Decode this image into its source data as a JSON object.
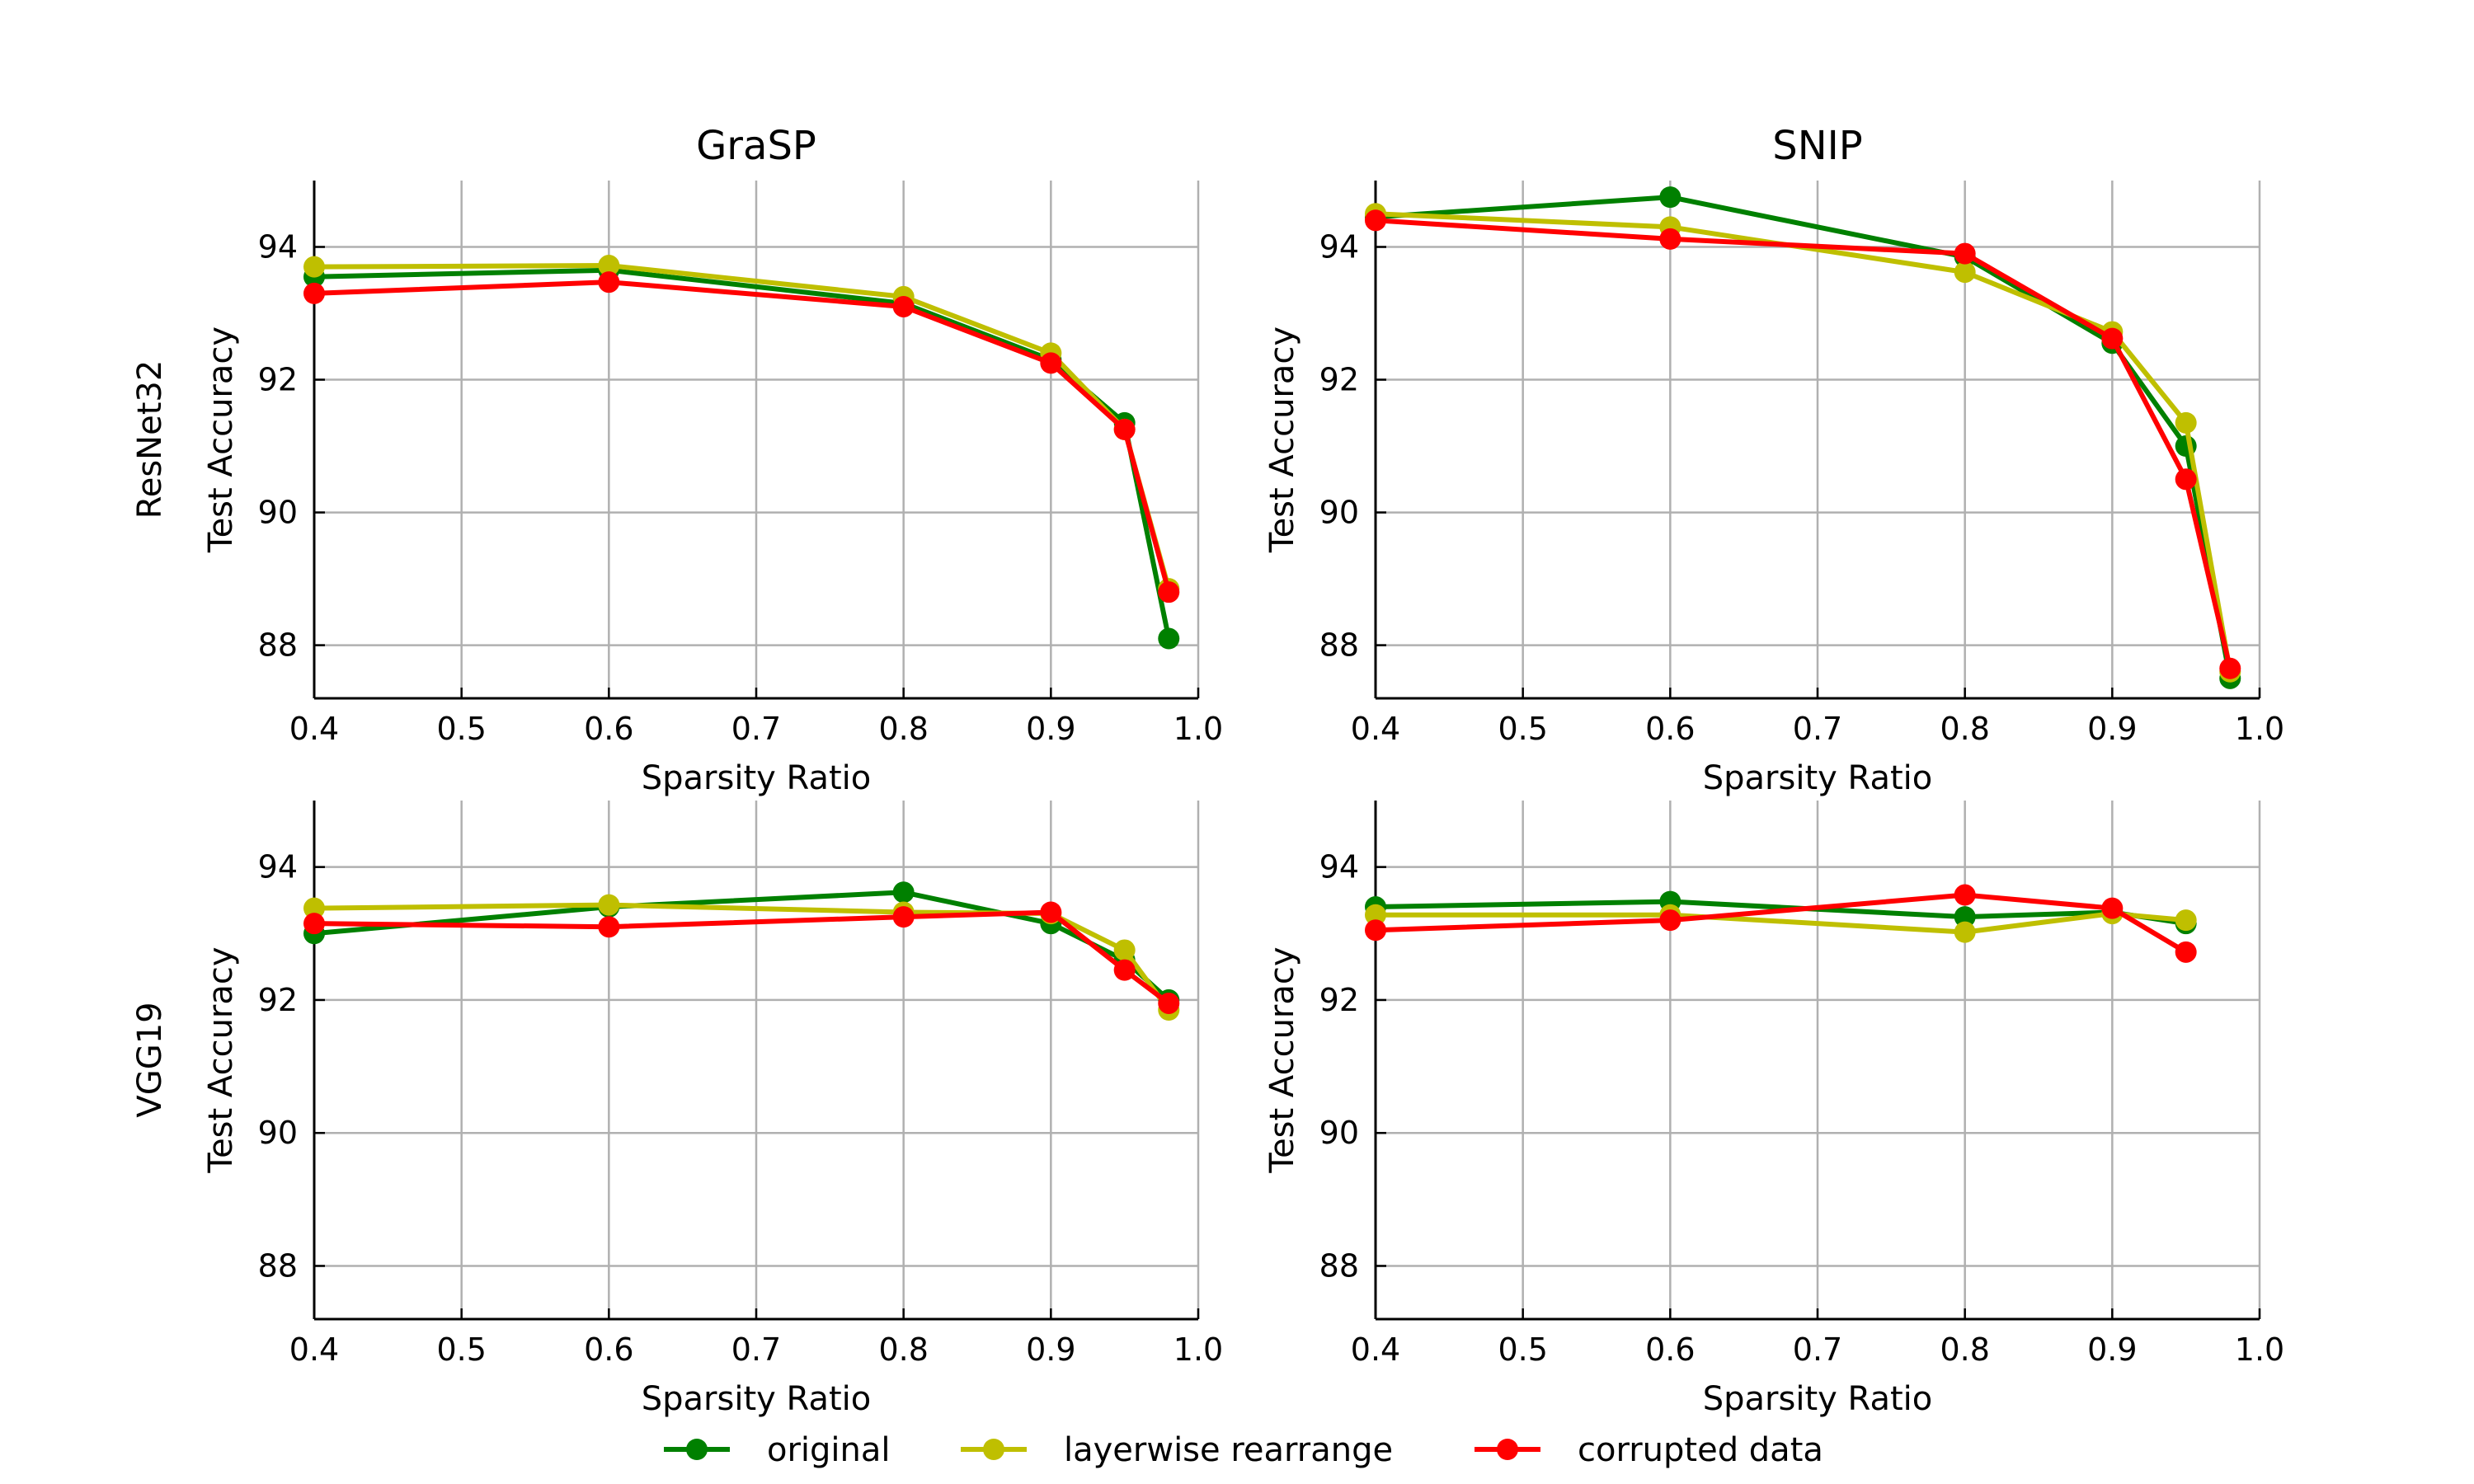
{
  "figure": {
    "legend": {
      "position": "bottom-center",
      "entries": [
        {
          "label": "original",
          "color": "#008000"
        },
        {
          "label": "layerwise rearrange",
          "color": "#bfbf00"
        },
        {
          "label": "corrupted data",
          "color": "#ff0000"
        }
      ]
    }
  },
  "chart_data": [
    {
      "type": "line",
      "title": "GraSP",
      "row_label": "ResNet32",
      "xlabel": "Sparsity Ratio",
      "ylabel": "Test Accuracy",
      "xlim": [
        0.4,
        1.0
      ],
      "ylim": [
        87.2,
        95.0
      ],
      "xticks": [
        "0.4",
        "0.5",
        "0.6",
        "0.7",
        "0.8",
        "0.9",
        "1.0"
      ],
      "yticks": [
        "88",
        "90",
        "92",
        "94"
      ],
      "grid": true,
      "series": [
        {
          "name": "original",
          "color": "#008000",
          "x": [
            0.4,
            0.6,
            0.8,
            0.9,
            0.95,
            0.98
          ],
          "y": [
            93.55,
            93.65,
            93.15,
            92.3,
            91.35,
            88.1
          ]
        },
        {
          "name": "layerwise rearrange",
          "color": "#bfbf00",
          "x": [
            0.4,
            0.6,
            0.8,
            0.9,
            0.95,
            0.98
          ],
          "y": [
            93.7,
            93.72,
            93.25,
            92.4,
            91.25,
            88.85
          ]
        },
        {
          "name": "corrupted data",
          "color": "#ff0000",
          "x": [
            0.4,
            0.6,
            0.8,
            0.9,
            0.95,
            0.98
          ],
          "y": [
            93.3,
            93.47,
            93.1,
            92.25,
            91.25,
            88.8
          ]
        }
      ]
    },
    {
      "type": "line",
      "title": "SNIP",
      "row_label": "",
      "xlabel": "Sparsity Ratio",
      "ylabel": "Test Accuracy",
      "xlim": [
        0.4,
        1.0
      ],
      "ylim": [
        87.2,
        95.0
      ],
      "xticks": [
        "0.4",
        "0.5",
        "0.6",
        "0.7",
        "0.8",
        "0.9",
        "1.0"
      ],
      "yticks": [
        "88",
        "90",
        "92",
        "94"
      ],
      "grid": true,
      "series": [
        {
          "name": "original",
          "color": "#008000",
          "x": [
            0.4,
            0.6,
            0.8,
            0.9,
            0.95,
            0.98
          ],
          "y": [
            94.45,
            94.75,
            93.85,
            92.55,
            91.0,
            87.5
          ]
        },
        {
          "name": "layerwise rearrange",
          "color": "#bfbf00",
          "x": [
            0.4,
            0.6,
            0.8,
            0.9,
            0.95,
            0.98
          ],
          "y": [
            94.5,
            94.3,
            93.62,
            92.72,
            91.35,
            87.6
          ]
        },
        {
          "name": "corrupted data",
          "color": "#ff0000",
          "x": [
            0.4,
            0.6,
            0.8,
            0.9,
            0.95,
            0.98
          ],
          "y": [
            94.4,
            94.12,
            93.9,
            92.62,
            90.5,
            87.65
          ]
        }
      ]
    },
    {
      "type": "line",
      "title": "",
      "row_label": "VGG19",
      "xlabel": "Sparsity Ratio",
      "ylabel": "Test Accuracy",
      "xlim": [
        0.4,
        1.0
      ],
      "ylim": [
        87.2,
        95.0
      ],
      "xticks": [
        "0.4",
        "0.5",
        "0.6",
        "0.7",
        "0.8",
        "0.9",
        "1.0"
      ],
      "yticks": [
        "88",
        "90",
        "92",
        "94"
      ],
      "grid": true,
      "series": [
        {
          "name": "original",
          "color": "#008000",
          "x": [
            0.4,
            0.6,
            0.8,
            0.9,
            0.95,
            0.98
          ],
          "y": [
            93.0,
            93.4,
            93.62,
            93.15,
            92.6,
            92.0
          ]
        },
        {
          "name": "layerwise rearrange",
          "color": "#bfbf00",
          "x": [
            0.4,
            0.6,
            0.8,
            0.9,
            0.95,
            0.98
          ],
          "y": [
            93.38,
            93.43,
            93.32,
            93.3,
            92.75,
            91.85
          ]
        },
        {
          "name": "corrupted data",
          "color": "#ff0000",
          "x": [
            0.4,
            0.6,
            0.8,
            0.9,
            0.95,
            0.98
          ],
          "y": [
            93.15,
            93.1,
            93.25,
            93.32,
            92.45,
            91.95
          ]
        }
      ]
    },
    {
      "type": "line",
      "title": "",
      "row_label": "",
      "xlabel": "Sparsity Ratio",
      "ylabel": "Test Accuracy",
      "xlim": [
        0.4,
        1.0
      ],
      "ylim": [
        87.2,
        95.0
      ],
      "xticks": [
        "0.4",
        "0.5",
        "0.6",
        "0.7",
        "0.8",
        "0.9",
        "1.0"
      ],
      "yticks": [
        "88",
        "90",
        "92",
        "94"
      ],
      "grid": true,
      "series": [
        {
          "name": "original",
          "color": "#008000",
          "x": [
            0.4,
            0.6,
            0.8,
            0.9,
            0.95
          ],
          "y": [
            93.4,
            93.48,
            93.25,
            93.32,
            93.15
          ]
        },
        {
          "name": "layerwise rearrange",
          "color": "#bfbf00",
          "x": [
            0.4,
            0.6,
            0.8,
            0.9,
            0.95
          ],
          "y": [
            93.28,
            93.28,
            93.02,
            93.3,
            93.2
          ]
        },
        {
          "name": "corrupted data",
          "color": "#ff0000",
          "x": [
            0.4,
            0.6,
            0.8,
            0.9,
            0.95
          ],
          "y": [
            93.05,
            93.2,
            93.58,
            93.38,
            92.72
          ]
        }
      ]
    }
  ]
}
